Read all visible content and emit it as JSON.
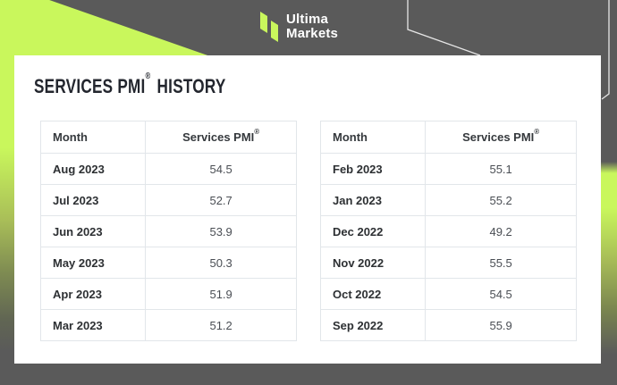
{
  "colors": {
    "accent_green": "#c9f75c",
    "background_gray": "#5a5a5a",
    "card_white": "#ffffff",
    "table_border": "#e2e6ea",
    "title_color": "#23262e"
  },
  "header": {
    "logo": {
      "icon": "ultima-markets-logo-icon",
      "line1": "Ultima",
      "line2": "Markets"
    }
  },
  "card": {
    "title": {
      "main": "SERVICES PMI",
      "registered": "®",
      "suffix": "HISTORY"
    }
  },
  "tables": [
    {
      "columns": {
        "month": "Month",
        "pmi": "Services PMI",
        "pmi_registered": "®"
      },
      "rows": [
        {
          "month": "Aug 2023",
          "value": "54.5"
        },
        {
          "month": "Jul 2023",
          "value": "52.7"
        },
        {
          "month": "Jun 2023",
          "value": "53.9"
        },
        {
          "month": "May 2023",
          "value": "50.3"
        },
        {
          "month": "Apr 2023",
          "value": "51.9"
        },
        {
          "month": "Mar 2023",
          "value": "51.2"
        }
      ]
    },
    {
      "columns": {
        "month": "Month",
        "pmi": "Services PMI",
        "pmi_registered": "®"
      },
      "rows": [
        {
          "month": "Feb 2023",
          "value": "55.1"
        },
        {
          "month": "Jan 2023",
          "value": "55.2"
        },
        {
          "month": "Dec 2022",
          "value": "49.2"
        },
        {
          "month": "Nov 2022",
          "value": "55.5"
        },
        {
          "month": "Oct 2022",
          "value": "54.5"
        },
        {
          "month": "Sep 2022",
          "value": "55.9"
        }
      ]
    }
  ],
  "chart_data": {
    "type": "table",
    "title": "SERVICES PMI HISTORY",
    "tables": [
      {
        "columns": [
          "Month",
          "Services PMI"
        ],
        "rows": [
          [
            "Aug 2023",
            54.5
          ],
          [
            "Jul 2023",
            52.7
          ],
          [
            "Jun 2023",
            53.9
          ],
          [
            "May 2023",
            50.3
          ],
          [
            "Apr 2023",
            51.9
          ],
          [
            "Mar 2023",
            51.2
          ]
        ]
      },
      {
        "columns": [
          "Month",
          "Services PMI"
        ],
        "rows": [
          [
            "Feb 2023",
            55.1
          ],
          [
            "Jan 2023",
            55.2
          ],
          [
            "Dec 2022",
            49.2
          ],
          [
            "Nov 2022",
            55.5
          ],
          [
            "Oct 2022",
            54.5
          ],
          [
            "Sep 2022",
            55.9
          ]
        ]
      }
    ]
  }
}
